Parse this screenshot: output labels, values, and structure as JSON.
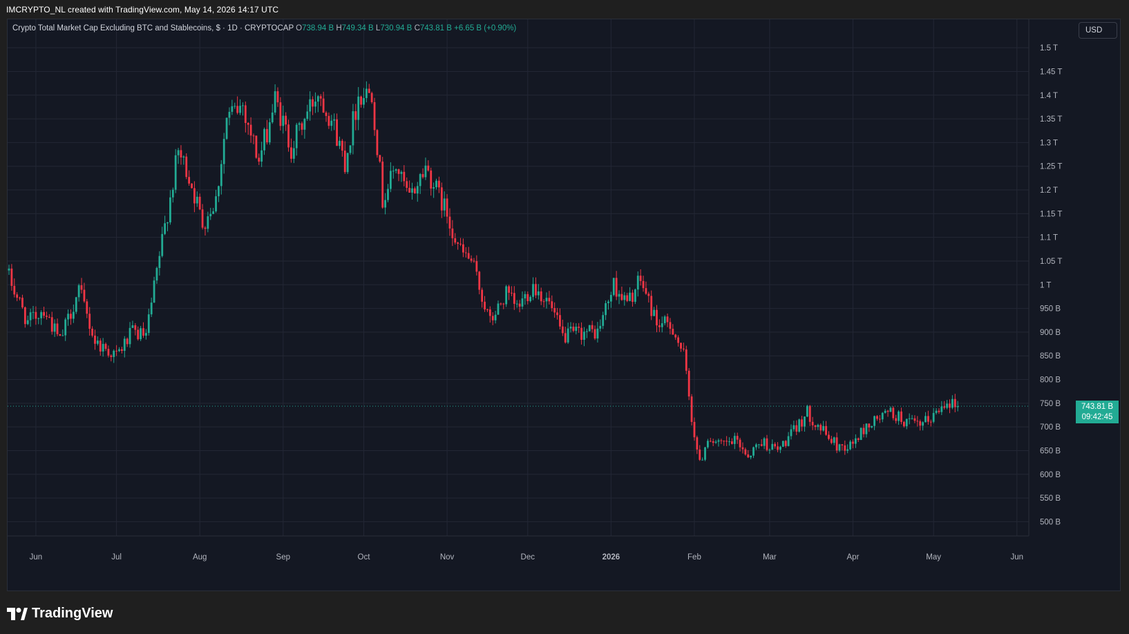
{
  "caption": "IMCRYPTO_NL created with TradingView.com, May 14, 2026 14:17 UTC",
  "legend": {
    "symbol": "Crypto Total Market Cap Excluding BTC and Stablecoins, $ · 1D · CRYPTOCAP",
    "open_key": "O",
    "open": "738.94 B",
    "high_key": "H",
    "high": "749.34 B",
    "low_key": "L",
    "low": "730.94 B",
    "close_key": "C",
    "close": "743.81 B",
    "change": "+6.65 B (+0.90%)"
  },
  "currency_button": "USD",
  "price_badge": {
    "price": "743.81 B",
    "countdown": "09:42:45"
  },
  "brand": {
    "name": "TradingView",
    "icon": "tradingview-logo-icon"
  },
  "colors": {
    "up": "#22ab94",
    "down": "#f23645",
    "background": "#141823",
    "grid": "#232735"
  },
  "chart_data": {
    "type": "candlestick",
    "y_unit": "USD",
    "ylim": [
      470,
      1560
    ],
    "y_ticks": [
      {
        "value": 500,
        "label": "500 B"
      },
      {
        "value": 550,
        "label": "550 B"
      },
      {
        "value": 600,
        "label": "600 B"
      },
      {
        "value": 650,
        "label": "650 B"
      },
      {
        "value": 700,
        "label": "700 B"
      },
      {
        "value": 750,
        "label": "750 B"
      },
      {
        "value": 800,
        "label": "800 B"
      },
      {
        "value": 850,
        "label": "850 B"
      },
      {
        "value": 900,
        "label": "900 B"
      },
      {
        "value": 950,
        "label": "950 B"
      },
      {
        "value": 1000,
        "label": "1 T"
      },
      {
        "value": 1050,
        "label": "1.05 T"
      },
      {
        "value": 1100,
        "label": "1.1 T"
      },
      {
        "value": 1150,
        "label": "1.15 T"
      },
      {
        "value": 1200,
        "label": "1.2 T"
      },
      {
        "value": 1250,
        "label": "1.25 T"
      },
      {
        "value": 1300,
        "label": "1.3 T"
      },
      {
        "value": 1350,
        "label": "1.35 T"
      },
      {
        "value": 1400,
        "label": "1.4 T"
      },
      {
        "value": 1450,
        "label": "1.45 T"
      },
      {
        "value": 1500,
        "label": "1.5 T"
      }
    ],
    "x_ticks": [
      {
        "label": "Jun",
        "day": 10
      },
      {
        "label": "Jul",
        "day": 40
      },
      {
        "label": "Aug",
        "day": 71
      },
      {
        "label": "Sep",
        "day": 102
      },
      {
        "label": "Oct",
        "day": 132
      },
      {
        "label": "Nov",
        "day": 163
      },
      {
        "label": "Dec",
        "day": 193
      },
      {
        "label": "2026",
        "day": 224,
        "bold": true
      },
      {
        "label": "Feb",
        "day": 255
      },
      {
        "label": "Mar",
        "day": 283
      },
      {
        "label": "Apr",
        "day": 314
      },
      {
        "label": "May",
        "day": 344
      },
      {
        "label": "Jun",
        "day": 375
      }
    ],
    "last_price": 743.81,
    "waypoints": [
      [
        0,
        1030
      ],
      [
        8,
        920
      ],
      [
        14,
        950
      ],
      [
        20,
        880
      ],
      [
        27,
        990
      ],
      [
        33,
        880
      ],
      [
        41,
        850
      ],
      [
        47,
        900
      ],
      [
        52,
        890
      ],
      [
        57,
        1060
      ],
      [
        64,
        1280
      ],
      [
        68,
        1230
      ],
      [
        73,
        1130
      ],
      [
        78,
        1180
      ],
      [
        82,
        1350
      ],
      [
        88,
        1380
      ],
      [
        94,
        1260
      ],
      [
        100,
        1390
      ],
      [
        106,
        1290
      ],
      [
        111,
        1350
      ],
      [
        116,
        1410
      ],
      [
        121,
        1350
      ],
      [
        126,
        1260
      ],
      [
        131,
        1400
      ],
      [
        136,
        1410
      ],
      [
        140,
        1180
      ],
      [
        145,
        1250
      ],
      [
        150,
        1180
      ],
      [
        156,
        1250
      ],
      [
        160,
        1200
      ],
      [
        164,
        1150
      ],
      [
        169,
        1070
      ],
      [
        173,
        1050
      ],
      [
        180,
        920
      ],
      [
        186,
        980
      ],
      [
        190,
        950
      ],
      [
        196,
        1000
      ],
      [
        202,
        960
      ],
      [
        207,
        890
      ],
      [
        214,
        900
      ],
      [
        220,
        900
      ],
      [
        226,
        1000
      ],
      [
        231,
        960
      ],
      [
        236,
        1010
      ],
      [
        242,
        920
      ],
      [
        248,
        910
      ],
      [
        252,
        850
      ],
      [
        255,
        720
      ],
      [
        258,
        620
      ],
      [
        261,
        680
      ],
      [
        265,
        660
      ],
      [
        272,
        670
      ],
      [
        276,
        640
      ],
      [
        281,
        670
      ],
      [
        287,
        650
      ],
      [
        293,
        690
      ],
      [
        298,
        730
      ],
      [
        304,
        690
      ],
      [
        309,
        660
      ],
      [
        314,
        660
      ],
      [
        320,
        700
      ],
      [
        325,
        720
      ],
      [
        329,
        730
      ],
      [
        335,
        710
      ],
      [
        340,
        700
      ],
      [
        346,
        730
      ],
      [
        350,
        760
      ],
      [
        353,
        744
      ]
    ]
  }
}
